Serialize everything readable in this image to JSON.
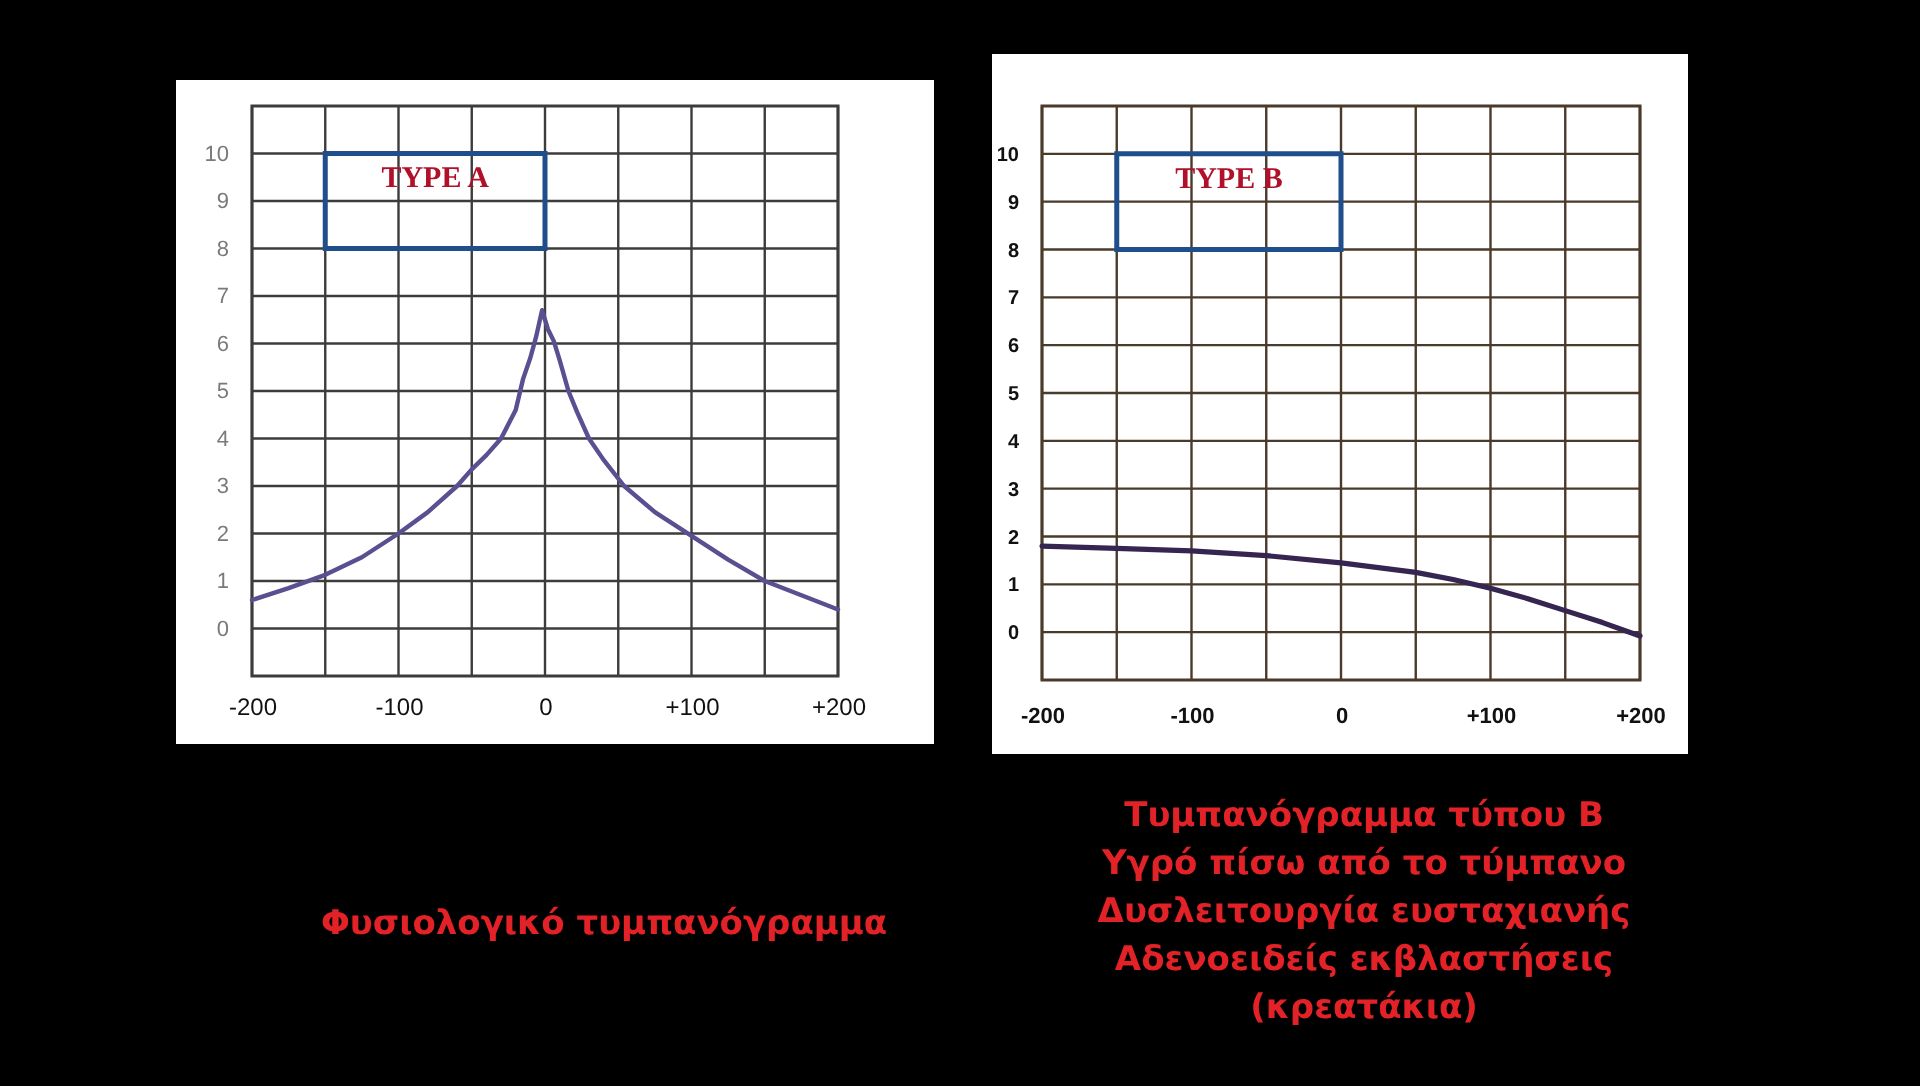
{
  "chart_data": [
    {
      "type": "line",
      "title": "TYPE A",
      "annotations": [
        "Φυσιολογικό τυμπανόγραμμα"
      ],
      "series": [
        {
          "color": "#585090",
          "x": [
            -200,
            -175,
            -150,
            -125,
            -100,
            -80,
            -60,
            -50,
            -40,
            -30,
            -20,
            -15,
            -10,
            -6,
            -2,
            2,
            6,
            10,
            16,
            22,
            30,
            40,
            54,
            75,
            100,
            125,
            150,
            175,
            200
          ],
          "values": [
            0.6,
            0.85,
            1.13,
            1.5,
            2.0,
            2.45,
            3.0,
            3.35,
            3.65,
            4.0,
            4.6,
            5.25,
            5.7,
            6.15,
            6.7,
            6.3,
            6.05,
            5.65,
            5.0,
            4.55,
            4.0,
            3.55,
            3.0,
            2.45,
            1.95,
            1.45,
            1.0,
            0.7,
            0.4
          ]
        }
      ],
      "xlim": [
        -200,
        200
      ],
      "xticks": [
        -200,
        {
          "value": -150,
          "label": null
        },
        -100,
        {
          "value": -50,
          "label": null
        },
        0,
        {
          "value": 50,
          "label": null
        },
        {
          "value": 100,
          "label": "+100"
        },
        {
          "value": 150,
          "label": null
        },
        {
          "value": 200,
          "label": "+200"
        }
      ],
      "ylim": [
        -1,
        11
      ],
      "yticks": [
        0,
        1,
        2,
        3,
        4,
        5,
        6,
        7,
        8,
        9,
        10
      ],
      "grid": true
    },
    {
      "type": "line",
      "title": "TYPE B",
      "annotations": [
        "Τυμπανόγραμμα τύπου Β",
        "Υγρό πίσω από το τύμπανο",
        "Δυσλειτουργία ευσταχιανής",
        "Αδενοειδείς εκβλαστήσεις",
        "(κρεατάκια)"
      ],
      "series": [
        {
          "color": "#352550",
          "x": [
            -200,
            -150,
            -100,
            -50,
            0,
            50,
            75,
            100,
            125,
            150,
            175,
            200
          ],
          "values": [
            1.8,
            1.75,
            1.7,
            1.6,
            1.45,
            1.25,
            1.1,
            0.92,
            0.7,
            0.45,
            0.2,
            -0.08
          ]
        }
      ],
      "xlim": [
        -200,
        200
      ],
      "xticks": [
        -200,
        {
          "value": -150,
          "label": null
        },
        -100,
        {
          "value": -50,
          "label": null
        },
        0,
        {
          "value": 50,
          "label": null
        },
        {
          "value": 100,
          "label": "+100"
        },
        {
          "value": 150,
          "label": null
        },
        {
          "value": 200,
          "label": "+200"
        }
      ],
      "ylim": [
        -1,
        11
      ],
      "yticks": [
        0,
        1,
        2,
        3,
        4,
        5,
        6,
        7,
        8,
        9,
        10
      ],
      "grid": true
    }
  ]
}
